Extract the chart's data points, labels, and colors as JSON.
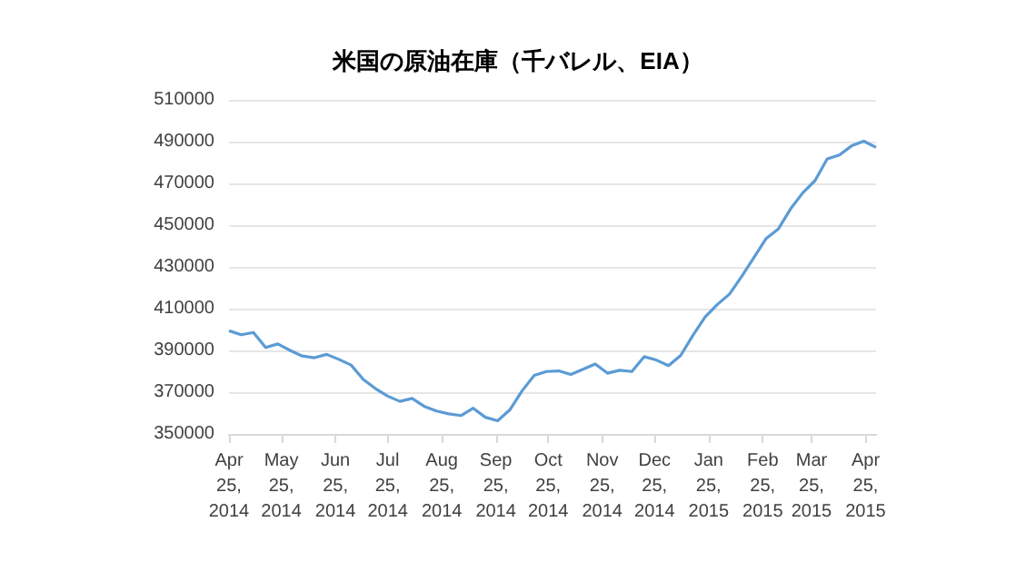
{
  "chart_data": {
    "type": "line",
    "title": "米国の原油在庫（千バレル、EIA）",
    "x": [
      "2014-04-25",
      "2014-05-02",
      "2014-05-09",
      "2014-05-16",
      "2014-05-23",
      "2014-05-30",
      "2014-06-06",
      "2014-06-13",
      "2014-06-20",
      "2014-06-27",
      "2014-07-04",
      "2014-07-11",
      "2014-07-18",
      "2014-07-25",
      "2014-08-01",
      "2014-08-08",
      "2014-08-15",
      "2014-08-22",
      "2014-08-29",
      "2014-09-05",
      "2014-09-12",
      "2014-09-19",
      "2014-09-26",
      "2014-10-03",
      "2014-10-10",
      "2014-10-17",
      "2014-10-24",
      "2014-10-31",
      "2014-11-07",
      "2014-11-14",
      "2014-11-21",
      "2014-11-28",
      "2014-12-05",
      "2014-12-12",
      "2014-12-19",
      "2014-12-26",
      "2015-01-02",
      "2015-01-09",
      "2015-01-16",
      "2015-01-23",
      "2015-01-30",
      "2015-02-06",
      "2015-02-13",
      "2015-02-20",
      "2015-02-27",
      "2015-03-06",
      "2015-03-13",
      "2015-03-20",
      "2015-03-27",
      "2015-04-03",
      "2015-04-10",
      "2015-04-17",
      "2015-04-24",
      "2015-05-01"
    ],
    "series": [
      {
        "color": "#5b9bd5",
        "values": [
          399400,
          397500,
          398600,
          391400,
          393100,
          390000,
          387300,
          386500,
          388100,
          385700,
          383000,
          376100,
          371700,
          368100,
          365600,
          367000,
          363200,
          361000,
          359600,
          358800,
          362300,
          358000,
          356300,
          361500,
          370600,
          378000,
          379900,
          380200,
          378500,
          381000,
          383500,
          379100,
          380500,
          379900,
          387000,
          385400,
          382700,
          387600,
          397200,
          406000,
          412000,
          417000,
          425500,
          434500,
          443600,
          448200,
          457800,
          465500,
          471300,
          481700,
          483600,
          488000,
          490200,
          487200
        ]
      }
    ],
    "xlim": [
      "2014-04-25",
      "2015-05-01"
    ],
    "xticks": [
      {
        "value": "2014-04-25",
        "label": "Apr 25, 2014"
      },
      {
        "value": "2014-05-25",
        "label": "May 25, 2014"
      },
      {
        "value": "2014-06-25",
        "label": "Jun 25, 2014"
      },
      {
        "value": "2014-07-25",
        "label": "Jul 25, 2014"
      },
      {
        "value": "2014-08-25",
        "label": "Aug 25, 2014"
      },
      {
        "value": "2014-09-25",
        "label": "Sep 25, 2014"
      },
      {
        "value": "2014-10-25",
        "label": "Oct 25, 2014"
      },
      {
        "value": "2014-11-25",
        "label": "Nov 25, 2014"
      },
      {
        "value": "2014-12-25",
        "label": "Dec 25, 2014"
      },
      {
        "value": "2015-01-25",
        "label": "Jan 25, 2015"
      },
      {
        "value": "2015-02-25",
        "label": "Feb 25, 2015"
      },
      {
        "value": "2015-03-25",
        "label": "Mar 25, 2015"
      },
      {
        "value": "2015-04-25",
        "label": "Apr 25, 2015"
      }
    ],
    "ylim": [
      350000,
      510000
    ],
    "yticks": [
      350000,
      370000,
      390000,
      410000,
      430000,
      450000,
      470000,
      490000,
      510000
    ],
    "grid": "y",
    "marker": "none",
    "line_style": "solid"
  }
}
